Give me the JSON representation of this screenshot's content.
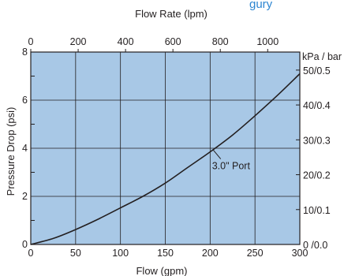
{
  "chart_data": {
    "type": "line",
    "title_partial": "gury",
    "top_axis": {
      "label": "Flow Rate  (lpm)",
      "ticks": [
        0,
        200,
        400,
        600,
        800,
        1000
      ]
    },
    "x_axis": {
      "label": "Flow (gpm)",
      "range": [
        0,
        300
      ],
      "ticks": [
        0,
        50,
        100,
        150,
        200,
        250,
        300
      ]
    },
    "y_axis": {
      "label": "Pressure Drop (psi)",
      "range": [
        0,
        8
      ],
      "ticks": [
        0,
        2,
        4,
        6,
        8
      ]
    },
    "right_axis": {
      "label": "kPa / bar",
      "ticks": [
        {
          "psi": 0,
          "label": "0 /0.0"
        },
        {
          "psi": 1.45,
          "label": "10/0.1"
        },
        {
          "psi": 2.9,
          "label": "20/0.2"
        },
        {
          "psi": 4.35,
          "label": "30/0.3"
        },
        {
          "psi": 5.8,
          "label": "40/0.4"
        },
        {
          "psi": 7.25,
          "label": "50/0.5"
        }
      ]
    },
    "grid": true,
    "series": [
      {
        "name": "3.0\" Port",
        "x": [
          0,
          25,
          50,
          75,
          100,
          125,
          150,
          175,
          200,
          225,
          250,
          275,
          300
        ],
        "y": [
          0,
          0.25,
          0.62,
          1.05,
          1.52,
          2.0,
          2.55,
          3.2,
          3.85,
          4.55,
          5.35,
          6.2,
          7.1
        ]
      }
    ],
    "annotation": {
      "text": "3.0\" Port",
      "x": 203,
      "y": 3.95
    }
  },
  "colors": {
    "plot_background": "#a8c8e6",
    "line": "#231f20",
    "title_fragment": "#2e86d1"
  }
}
